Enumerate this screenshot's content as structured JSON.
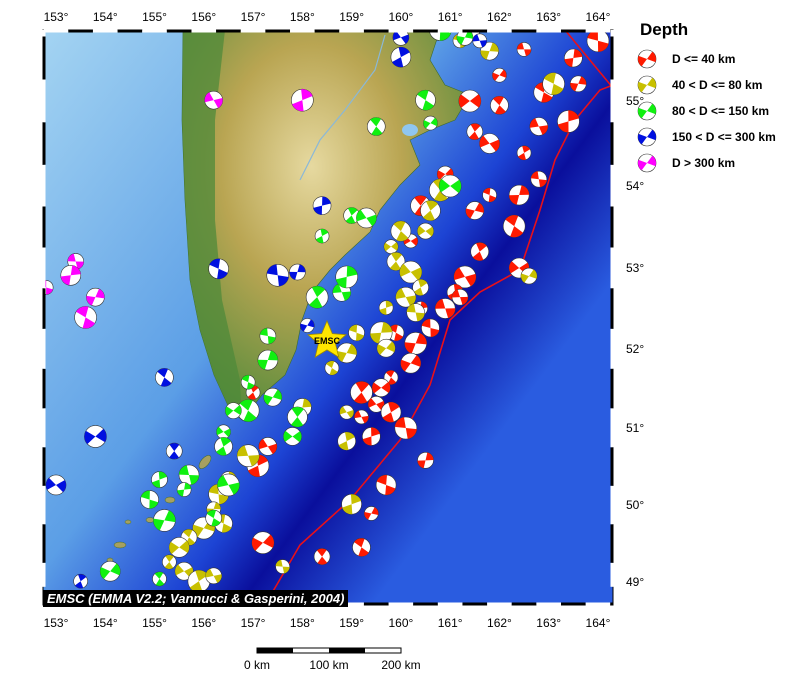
{
  "map": {
    "lon_ticks": [
      153,
      154,
      155,
      156,
      157,
      158,
      159,
      160,
      161,
      162,
      163,
      164
    ],
    "lat_ticks": [
      49,
      50,
      51,
      52,
      53,
      54,
      55
    ],
    "degree_symbol": "°",
    "ocean_colors": [
      "#a4d4f2",
      "#5b9ee6",
      "#1d44d4",
      "#0a0f9c",
      "#2a5ce0"
    ],
    "land_colors": [
      "#4f8a3a",
      "#b9a552",
      "#e6d9a0"
    ],
    "trench_color": "#e8101a",
    "station": {
      "label": "EMSC",
      "lon": 158.5,
      "lat": 52.1,
      "color": "#ffe600"
    }
  },
  "legend": {
    "title": "Depth",
    "items": [
      {
        "key": "d40",
        "label": "D <= 40 km",
        "color": "#ff1a00"
      },
      {
        "key": "d80",
        "label": "40 < D <= 80 km",
        "color": "#c8c000"
      },
      {
        "key": "d150",
        "label": "80 < D <= 150 km",
        "color": "#10f010"
      },
      {
        "key": "d300",
        "label": "150 < D <= 300 km",
        "color": "#0010e0"
      },
      {
        "key": "dx",
        "label": "D > 300 km",
        "color": "#ff00ff"
      }
    ]
  },
  "credit": "EMSC (EMMA V2.2; Vannucci & Gasperini, 2004)",
  "scale_bar": {
    "labels": [
      "0 km",
      "100 km",
      "200 km"
    ]
  },
  "events": [
    {
      "lon": 162.5,
      "lat": 55.6,
      "d": "d40"
    },
    {
      "lon": 163.5,
      "lat": 55.5,
      "d": "d40"
    },
    {
      "lon": 164.0,
      "lat": 55.7,
      "d": "d40"
    },
    {
      "lon": 163.6,
      "lat": 55.2,
      "d": "d40"
    },
    {
      "lon": 162.9,
      "lat": 55.1,
      "d": "d40"
    },
    {
      "lon": 162.0,
      "lat": 55.3,
      "d": "d40"
    },
    {
      "lon": 162.0,
      "lat": 54.95,
      "d": "d40"
    },
    {
      "lon": 161.4,
      "lat": 55.0,
      "d": "d40"
    },
    {
      "lon": 161.5,
      "lat": 54.64,
      "d": "d40"
    },
    {
      "lon": 161.8,
      "lat": 54.5,
      "d": "d40"
    },
    {
      "lon": 162.5,
      "lat": 54.39,
      "d": "d40"
    },
    {
      "lon": 162.8,
      "lat": 54.7,
      "d": "d40"
    },
    {
      "lon": 163.4,
      "lat": 54.76,
      "d": "d40"
    },
    {
      "lon": 162.8,
      "lat": 54.08,
      "d": "d40"
    },
    {
      "lon": 162.4,
      "lat": 53.89,
      "d": "d40"
    },
    {
      "lon": 161.8,
      "lat": 53.89,
      "d": "d40"
    },
    {
      "lon": 161.5,
      "lat": 53.7,
      "d": "d40"
    },
    {
      "lon": 162.3,
      "lat": 53.51,
      "d": "d40"
    },
    {
      "lon": 160.9,
      "lat": 54.14,
      "d": "d40"
    },
    {
      "lon": 160.4,
      "lat": 53.76,
      "d": "d40"
    },
    {
      "lon": 160.2,
      "lat": 53.33,
      "d": "d40"
    },
    {
      "lon": 161.6,
      "lat": 53.2,
      "d": "d40"
    },
    {
      "lon": 161.3,
      "lat": 52.89,
      "d": "d40"
    },
    {
      "lon": 161.1,
      "lat": 52.7,
      "d": "d40"
    },
    {
      "lon": 160.9,
      "lat": 52.5,
      "d": "d40"
    },
    {
      "lon": 160.4,
      "lat": 52.5,
      "d": "d40"
    },
    {
      "lon": 160.6,
      "lat": 52.26,
      "d": "d40"
    },
    {
      "lon": 160.3,
      "lat": 52.07,
      "d": "d40"
    },
    {
      "lon": 159.9,
      "lat": 52.2,
      "d": "d40"
    },
    {
      "lon": 160.2,
      "lat": 51.82,
      "d": "d40"
    },
    {
      "lon": 159.8,
      "lat": 51.64,
      "d": "d40"
    },
    {
      "lon": 159.6,
      "lat": 51.51,
      "d": "d40"
    },
    {
      "lon": 159.2,
      "lat": 51.45,
      "d": "d40"
    },
    {
      "lon": 159.5,
      "lat": 51.3,
      "d": "d40"
    },
    {
      "lon": 159.8,
      "lat": 51.2,
      "d": "d40"
    },
    {
      "lon": 159.2,
      "lat": 51.14,
      "d": "d40"
    },
    {
      "lon": 159.4,
      "lat": 50.89,
      "d": "d40"
    },
    {
      "lon": 160.1,
      "lat": 51.0,
      "d": "d40"
    },
    {
      "lon": 160.5,
      "lat": 50.58,
      "d": "d40"
    },
    {
      "lon": 159.7,
      "lat": 50.26,
      "d": "d40"
    },
    {
      "lon": 159.4,
      "lat": 49.89,
      "d": "d40"
    },
    {
      "lon": 159.2,
      "lat": 49.45,
      "d": "d40"
    },
    {
      "lon": 157.2,
      "lat": 49.51,
      "d": "d40"
    },
    {
      "lon": 158.4,
      "lat": 49.33,
      "d": "d40"
    },
    {
      "lon": 162.4,
      "lat": 53.0,
      "d": "d40"
    },
    {
      "lon": 157.0,
      "lat": 51.45,
      "d": "d40"
    },
    {
      "lon": 157.3,
      "lat": 50.76,
      "d": "d40"
    },
    {
      "lon": 157.1,
      "lat": 50.51,
      "d": "d40"
    },
    {
      "lon": 161.2,
      "lat": 52.64,
      "d": "d40"
    },
    {
      "lon": 161.4,
      "lat": 55.83,
      "d": "d80"
    },
    {
      "lon": 161.2,
      "lat": 55.7,
      "d": "d80"
    },
    {
      "lon": 161.8,
      "lat": 55.58,
      "d": "d80"
    },
    {
      "lon": 163.1,
      "lat": 55.2,
      "d": "d80"
    },
    {
      "lon": 162.6,
      "lat": 52.9,
      "d": "d80"
    },
    {
      "lon": 160.0,
      "lat": 53.45,
      "d": "d80"
    },
    {
      "lon": 159.8,
      "lat": 53.26,
      "d": "d80"
    },
    {
      "lon": 159.9,
      "lat": 53.08,
      "d": "d80"
    },
    {
      "lon": 160.2,
      "lat": 52.95,
      "d": "d80"
    },
    {
      "lon": 160.4,
      "lat": 52.76,
      "d": "d80"
    },
    {
      "lon": 160.1,
      "lat": 52.64,
      "d": "d80"
    },
    {
      "lon": 159.7,
      "lat": 52.51,
      "d": "d80"
    },
    {
      "lon": 160.3,
      "lat": 52.45,
      "d": "d80"
    },
    {
      "lon": 159.6,
      "lat": 52.2,
      "d": "d80"
    },
    {
      "lon": 159.1,
      "lat": 52.2,
      "d": "d80"
    },
    {
      "lon": 158.9,
      "lat": 51.95,
      "d": "d80"
    },
    {
      "lon": 158.6,
      "lat": 51.76,
      "d": "d80"
    },
    {
      "lon": 159.7,
      "lat": 52.01,
      "d": "d80"
    },
    {
      "lon": 160.8,
      "lat": 53.95,
      "d": "d80"
    },
    {
      "lon": 160.5,
      "lat": 53.45,
      "d": "d80"
    },
    {
      "lon": 160.6,
      "lat": 53.7,
      "d": "d80"
    },
    {
      "lon": 158.9,
      "lat": 51.2,
      "d": "d80"
    },
    {
      "lon": 158.9,
      "lat": 50.83,
      "d": "d80"
    },
    {
      "lon": 156.9,
      "lat": 50.64,
      "d": "d80"
    },
    {
      "lon": 156.5,
      "lat": 50.33,
      "d": "d80"
    },
    {
      "lon": 156.3,
      "lat": 50.14,
      "d": "d80"
    },
    {
      "lon": 156.2,
      "lat": 49.95,
      "d": "d80"
    },
    {
      "lon": 156.4,
      "lat": 49.76,
      "d": "d80"
    },
    {
      "lon": 156.0,
      "lat": 49.7,
      "d": "d80"
    },
    {
      "lon": 155.7,
      "lat": 49.58,
      "d": "d80"
    },
    {
      "lon": 155.5,
      "lat": 49.45,
      "d": "d80"
    },
    {
      "lon": 155.3,
      "lat": 49.26,
      "d": "d80"
    },
    {
      "lon": 155.6,
      "lat": 49.14,
      "d": "d80"
    },
    {
      "lon": 155.9,
      "lat": 49.01,
      "d": "d80"
    },
    {
      "lon": 156.2,
      "lat": 49.08,
      "d": "d80"
    },
    {
      "lon": 159.0,
      "lat": 50.01,
      "d": "d80"
    },
    {
      "lon": 157.6,
      "lat": 49.2,
      "d": "d80"
    },
    {
      "lon": 158.0,
      "lat": 51.26,
      "d": "d80"
    },
    {
      "lon": 160.8,
      "lat": 55.83,
      "d": "d150"
    },
    {
      "lon": 161.3,
      "lat": 55.74,
      "d": "d150"
    },
    {
      "lon": 160.5,
      "lat": 55.01,
      "d": "d150"
    },
    {
      "lon": 160.6,
      "lat": 54.74,
      "d": "d150"
    },
    {
      "lon": 159.5,
      "lat": 54.7,
      "d": "d150"
    },
    {
      "lon": 161.0,
      "lat": 54.0,
      "d": "d150"
    },
    {
      "lon": 159.0,
      "lat": 53.64,
      "d": "d150"
    },
    {
      "lon": 159.3,
      "lat": 53.61,
      "d": "d150"
    },
    {
      "lon": 158.4,
      "lat": 53.39,
      "d": "d150"
    },
    {
      "lon": 158.8,
      "lat": 52.7,
      "d": "d150"
    },
    {
      "lon": 158.9,
      "lat": 52.89,
      "d": "d150"
    },
    {
      "lon": 157.3,
      "lat": 52.16,
      "d": "d150"
    },
    {
      "lon": 157.3,
      "lat": 51.86,
      "d": "d150"
    },
    {
      "lon": 156.9,
      "lat": 51.58,
      "d": "d150"
    },
    {
      "lon": 157.4,
      "lat": 51.39,
      "d": "d150"
    },
    {
      "lon": 156.9,
      "lat": 51.22,
      "d": "d150"
    },
    {
      "lon": 156.6,
      "lat": 51.22,
      "d": "d150"
    },
    {
      "lon": 157.9,
      "lat": 51.14,
      "d": "d150"
    },
    {
      "lon": 156.4,
      "lat": 50.95,
      "d": "d150"
    },
    {
      "lon": 156.4,
      "lat": 50.76,
      "d": "d150"
    },
    {
      "lon": 156.5,
      "lat": 50.26,
      "d": "d150"
    },
    {
      "lon": 155.1,
      "lat": 50.33,
      "d": "d150"
    },
    {
      "lon": 155.7,
      "lat": 50.39,
      "d": "d150"
    },
    {
      "lon": 155.6,
      "lat": 50.2,
      "d": "d150"
    },
    {
      "lon": 154.9,
      "lat": 50.07,
      "d": "d150"
    },
    {
      "lon": 155.2,
      "lat": 49.8,
      "d": "d150"
    },
    {
      "lon": 156.2,
      "lat": 49.83,
      "d": "d150"
    },
    {
      "lon": 154.1,
      "lat": 49.14,
      "d": "d150"
    },
    {
      "lon": 155.1,
      "lat": 49.04,
      "d": "d150"
    },
    {
      "lon": 157.8,
      "lat": 50.89,
      "d": "d150"
    },
    {
      "lon": 158.3,
      "lat": 52.64,
      "d": "d150"
    },
    {
      "lon": 160.0,
      "lat": 55.74,
      "d": "d300"
    },
    {
      "lon": 160.0,
      "lat": 55.51,
      "d": "d300"
    },
    {
      "lon": 161.6,
      "lat": 55.7,
      "d": "d300"
    },
    {
      "lon": 158.4,
      "lat": 53.76,
      "d": "d300"
    },
    {
      "lon": 157.5,
      "lat": 52.91,
      "d": "d300"
    },
    {
      "lon": 157.9,
      "lat": 52.95,
      "d": "d300"
    },
    {
      "lon": 156.3,
      "lat": 52.99,
      "d": "d300"
    },
    {
      "lon": 158.1,
      "lat": 52.29,
      "d": "d300"
    },
    {
      "lon": 155.2,
      "lat": 51.64,
      "d": "d300"
    },
    {
      "lon": 153.8,
      "lat": 50.89,
      "d": "d300"
    },
    {
      "lon": 155.4,
      "lat": 50.7,
      "d": "d300"
    },
    {
      "lon": 153.0,
      "lat": 50.26,
      "d": "d300"
    },
    {
      "lon": 153.5,
      "lat": 49.01,
      "d": "d300"
    },
    {
      "lon": 156.2,
      "lat": 55.01,
      "d": "dx"
    },
    {
      "lon": 158.0,
      "lat": 55.01,
      "d": "dx"
    },
    {
      "lon": 153.4,
      "lat": 53.08,
      "d": "dx"
    },
    {
      "lon": 153.3,
      "lat": 52.91,
      "d": "dx"
    },
    {
      "lon": 152.8,
      "lat": 52.76,
      "d": "dx"
    },
    {
      "lon": 153.8,
      "lat": 52.64,
      "d": "dx"
    },
    {
      "lon": 153.6,
      "lat": 52.39,
      "d": "dx"
    }
  ]
}
